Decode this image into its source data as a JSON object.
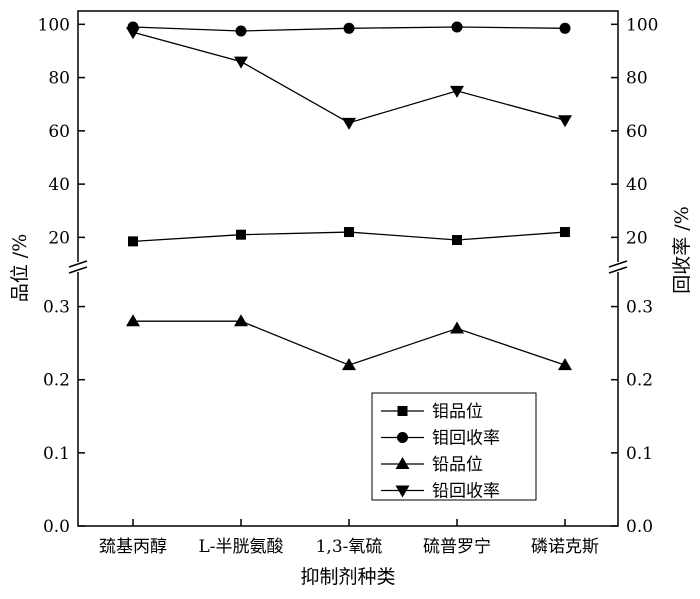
{
  "chart_data": {
    "type": "line",
    "categories": [
      "巯基丙醇",
      "L-半胱氨酸",
      "1,3-氧硫",
      "硫普罗宁",
      "磷诺克斯"
    ],
    "xlabel": "抑制剂种类",
    "ylabel_left": "品位 /%",
    "ylabel_right": "回收率 /%",
    "axis_break": true,
    "upper_segment": {
      "ylim": [
        10,
        105
      ],
      "ticks": [
        20,
        40,
        60,
        80,
        100
      ],
      "tick_labels": [
        "20",
        "40",
        "60",
        "80",
        "100"
      ]
    },
    "lower_segment": {
      "ylim": [
        0,
        0.35
      ],
      "ticks": [
        0.0,
        0.1,
        0.2,
        0.3
      ],
      "tick_labels": [
        "0.0",
        "0.1",
        "0.2",
        "0.3"
      ]
    },
    "series": [
      {
        "name": "钼品位",
        "marker": "square",
        "segment": "upper",
        "values": [
          18.5,
          21,
          22,
          19,
          22
        ]
      },
      {
        "name": "钼回收率",
        "marker": "circle",
        "segment": "upper",
        "values": [
          99,
          97.5,
          98.5,
          99,
          98.5
        ]
      },
      {
        "name": "铅品位",
        "marker": "triangle-up",
        "segment": "lower",
        "values": [
          0.28,
          0.28,
          0.22,
          0.27,
          0.22
        ]
      },
      {
        "name": "铅回收率",
        "marker": "triangle-down",
        "segment": "upper",
        "values": [
          97,
          86,
          63,
          75,
          64
        ]
      }
    ],
    "legend_position": "bottom-right"
  }
}
